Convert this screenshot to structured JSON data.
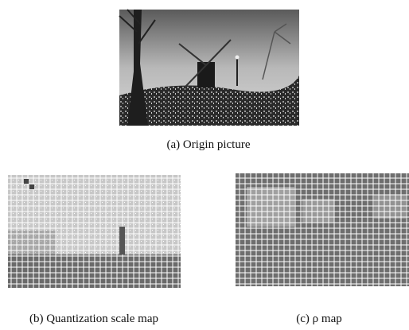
{
  "figures": [
    {
      "caption": "(a) Origin picture"
    },
    {
      "caption": "(b) Quantization scale map"
    },
    {
      "caption": "(c) ρ map"
    }
  ]
}
